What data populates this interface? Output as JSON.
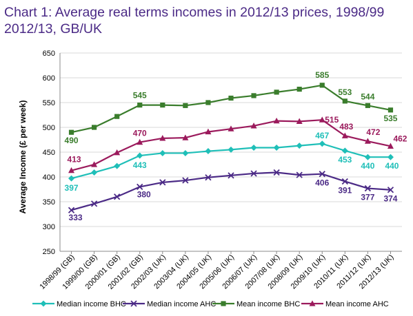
{
  "title_lines": [
    "Chart 1: Average real terms incomes in 2012/13 prices, 1998/99",
    "2012/13, GB/UK"
  ],
  "chart_data": {
    "type": "line",
    "title": "Chart 1: Average real terms incomes in 2012/13 prices, 1998/99 2012/13, GB/UK",
    "xlabel": "",
    "ylabel": "Average Income (£ per week)",
    "ylim": [
      250,
      650
    ],
    "yticks": [
      250,
      300,
      350,
      400,
      450,
      500,
      550,
      600,
      650
    ],
    "grid": true,
    "legend_position": "bottom",
    "categories": [
      "1998/99 (GB)",
      "1999/00 (GB)",
      "2000/01 (GB)",
      "2001/02 (GB)",
      "2002/03 (UK)",
      "2003/04 (UK)",
      "2004/05 (UK)",
      "2005/06 (UK)",
      "2006/07 (UK)",
      "2007/08 (UK)",
      "2008/09 (UK)",
      "2009/10 (UK)",
      "2010/11 (UK)",
      "2011/12 (UK)",
      "2012/13 (UK)"
    ],
    "series": [
      {
        "name": "Median income BHC",
        "color": "#1fbfb8",
        "marker": "diamond",
        "values": [
          397,
          409,
          422,
          443,
          448,
          448,
          452,
          455,
          459,
          459,
          463,
          467,
          453,
          440,
          440
        ],
        "labels": [
          {
            "i": 0,
            "text": "397"
          },
          {
            "i": 3,
            "text": "443"
          },
          {
            "i": 11,
            "text": "467"
          },
          {
            "i": 12,
            "text": "453"
          },
          {
            "i": 13,
            "text": "440"
          },
          {
            "i": 14,
            "text": "440"
          }
        ]
      },
      {
        "name": "Median income AHC",
        "color": "#4b2a86",
        "marker": "x",
        "values": [
          333,
          346,
          360,
          380,
          389,
          393,
          399,
          403,
          407,
          409,
          404,
          406,
          391,
          377,
          374
        ],
        "labels": [
          {
            "i": 0,
            "text": "333"
          },
          {
            "i": 3,
            "text": "380"
          },
          {
            "i": 11,
            "text": "406"
          },
          {
            "i": 12,
            "text": "391"
          },
          {
            "i": 13,
            "text": "377"
          },
          {
            "i": 14,
            "text": "374"
          }
        ]
      },
      {
        "name": "Mean income BHC",
        "color": "#3a7d2c",
        "marker": "square",
        "values": [
          490,
          500,
          522,
          545,
          545,
          544,
          550,
          559,
          564,
          571,
          577,
          585,
          553,
          544,
          535
        ],
        "labels": [
          {
            "i": 0,
            "text": "490"
          },
          {
            "i": 3,
            "text": "545"
          },
          {
            "i": 11,
            "text": "585"
          },
          {
            "i": 12,
            "text": "553"
          },
          {
            "i": 13,
            "text": "544"
          },
          {
            "i": 14,
            "text": "535"
          }
        ]
      },
      {
        "name": "Mean income AHC",
        "color": "#9b1a5c",
        "marker": "triangle",
        "values": [
          413,
          425,
          449,
          470,
          478,
          479,
          491,
          497,
          503,
          513,
          512,
          515,
          483,
          472,
          462
        ],
        "labels": [
          {
            "i": 0,
            "text": "413"
          },
          {
            "i": 3,
            "text": "470"
          },
          {
            "i": 11,
            "text": "515"
          },
          {
            "i": 12,
            "text": "483"
          },
          {
            "i": 13,
            "text": "472"
          },
          {
            "i": 14,
            "text": "462"
          }
        ]
      }
    ]
  }
}
